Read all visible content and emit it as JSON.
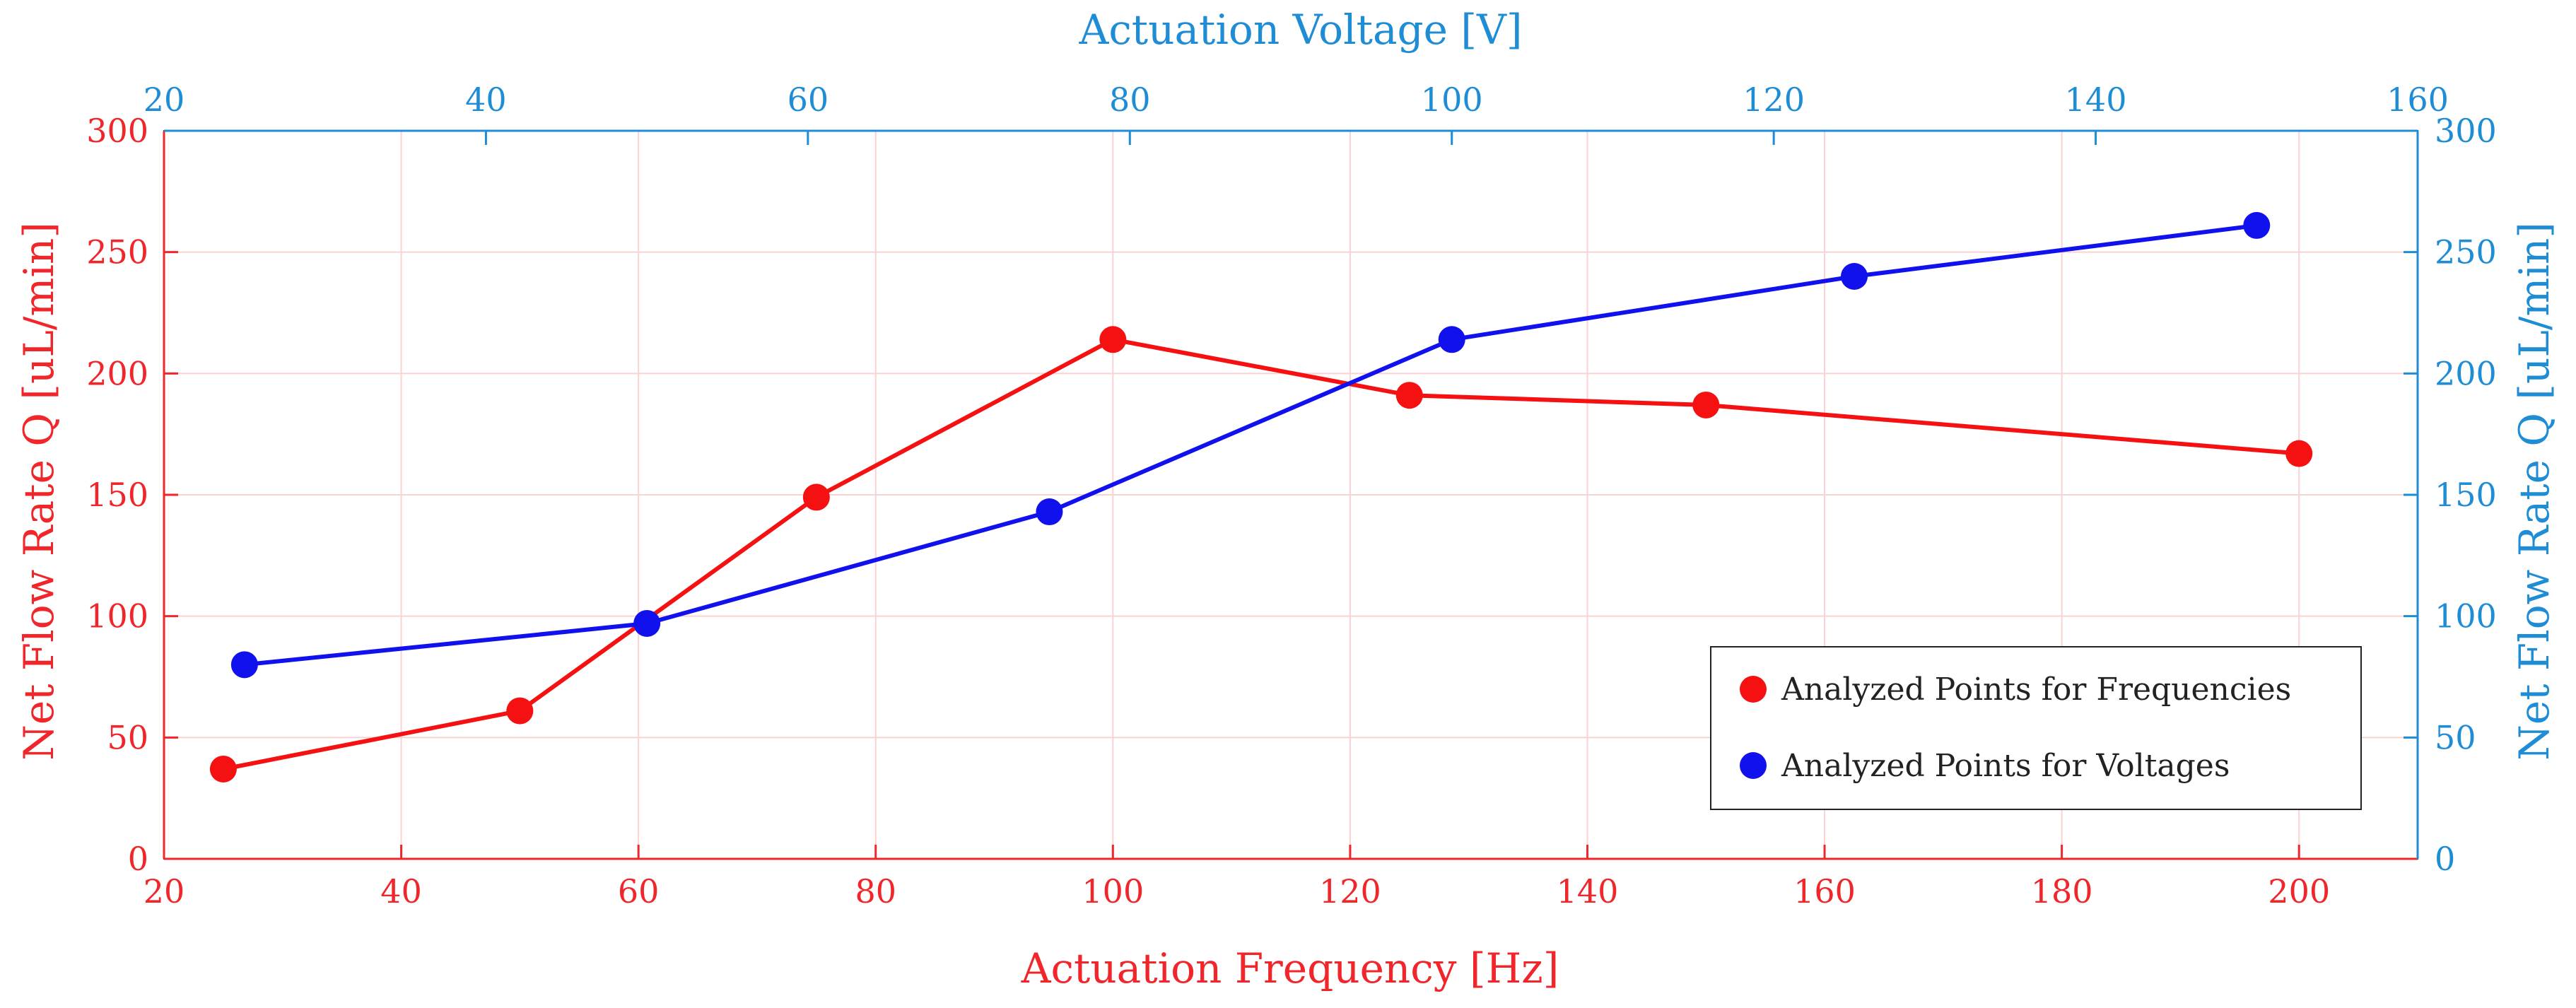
{
  "colors": {
    "frequency_series": "#f51111",
    "voltage_series": "#1111ee",
    "left_axis": "#f0262b",
    "right_axis": "#1f8dd6",
    "grid": "#fbd2d2",
    "text": "#222222"
  },
  "chart_data": {
    "type": "line",
    "title": "",
    "xlabel": "Actuation Frequency [Hz]",
    "x2label": "Actuation Voltage [V]",
    "ylabel": "Net Flow Rate Q [uL/min]",
    "y2label": "Net Flow Rate Q [uL/min]",
    "xlim": [
      20,
      210
    ],
    "x2lim": [
      20,
      160
    ],
    "ylim": [
      0,
      300
    ],
    "y2lim": [
      0,
      300
    ],
    "grid": true,
    "xticks": [
      "20",
      "40",
      "60",
      "80",
      "100",
      "120",
      "140",
      "160",
      "180",
      "200"
    ],
    "x2ticks": [
      "20",
      "40",
      "60",
      "80",
      "100",
      "120",
      "140",
      "160"
    ],
    "yticks": [
      "0",
      "50",
      "100",
      "150",
      "200",
      "250",
      "300"
    ],
    "y2ticks": [
      "0",
      "50",
      "100",
      "150",
      "200",
      "250",
      "300"
    ],
    "legend_position": "lower-right",
    "series": [
      {
        "name": "Analyzed Points for Frequencies",
        "axis": "bottom-left",
        "x": [
          25,
          50,
          75,
          100,
          125,
          150,
          200
        ],
        "values": [
          37,
          61,
          149,
          214,
          191,
          187,
          167
        ]
      },
      {
        "name": "Analyzed Points for Voltages",
        "axis": "top-right",
        "x": [
          25,
          50,
          75,
          100,
          125,
          150
        ],
        "values": [
          80,
          97,
          143,
          214,
          240,
          261
        ]
      }
    ]
  }
}
